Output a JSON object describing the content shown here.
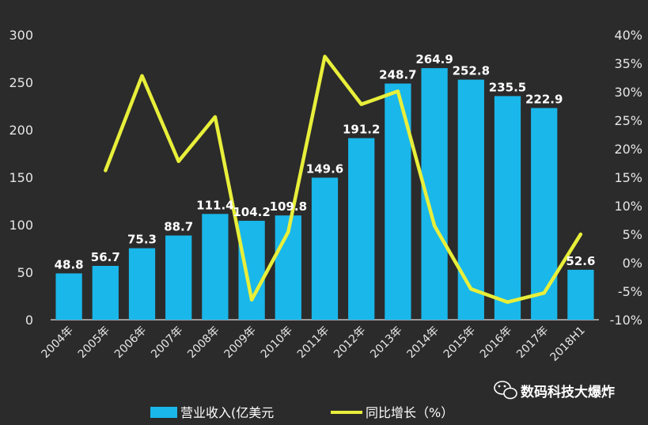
{
  "chart_data": {
    "type": "bar",
    "categories": [
      "2004年",
      "2005年",
      "2006年",
      "2007年",
      "2008年",
      "2009年",
      "2010年",
      "2011年",
      "2012年",
      "2013年",
      "2014年",
      "2015年",
      "2016年",
      "2017年",
      "2018H1"
    ],
    "series": [
      {
        "name": "营业收入(亿美元",
        "type": "bar",
        "axis": "left",
        "color": "#1ab7ea",
        "values": [
          48.8,
          56.7,
          75.3,
          88.7,
          111.4,
          104.2,
          109.8,
          149.6,
          191.2,
          248.7,
          264.9,
          252.8,
          235.5,
          222.9,
          52.6
        ],
        "labels": [
          "48.8",
          "56.7",
          "75.3",
          "88.7",
          "111.4",
          "104.2",
          "109.8",
          "149.6",
          "191.2",
          "248.7",
          "264.9",
          "252.8",
          "235.5",
          "222.9",
          "52.6"
        ]
      },
      {
        "name": "同比增长（%）",
        "type": "line",
        "axis": "right",
        "color": "#e8ef3a",
        "values": [
          null,
          16.2,
          32.8,
          17.8,
          25.6,
          -6.5,
          5.4,
          36.2,
          27.8,
          30.1,
          6.5,
          -4.6,
          -6.9,
          -5.3,
          5.0
        ]
      }
    ],
    "y_left": {
      "ylim": [
        0,
        300
      ],
      "ticks": [
        "0",
        "50",
        "100",
        "150",
        "200",
        "250",
        "300"
      ]
    },
    "y_right": {
      "ylim": [
        -10,
        40
      ],
      "ticks": [
        "-10%",
        "-5%",
        "0%",
        "5%",
        "10%",
        "15%",
        "20%",
        "25%",
        "30%",
        "35%",
        "40%"
      ]
    },
    "grid": false,
    "legend": {
      "position": "bottom-center"
    }
  },
  "watermark": {
    "text": "数码科技大爆炸",
    "icon": "wechat-icon"
  }
}
